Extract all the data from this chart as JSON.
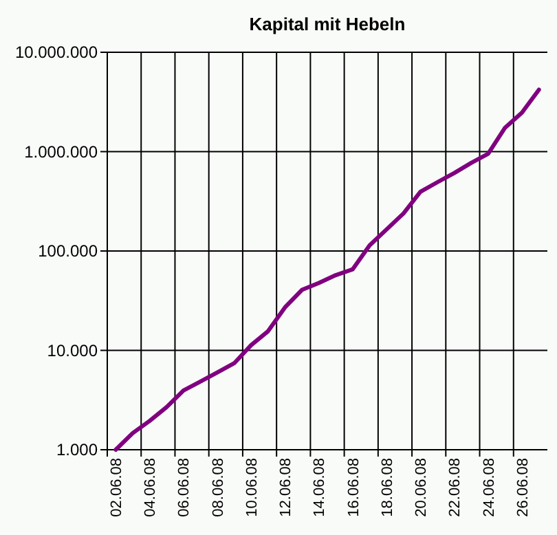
{
  "chart_data": {
    "type": "line",
    "title": "Kapital mit Hebeln",
    "categories": [
      "02.06.08",
      null,
      "04.06.08",
      null,
      "06.06.08",
      null,
      "08.06.08",
      null,
      "10.06.08",
      null,
      "12.06.08",
      null,
      "14.06.08",
      null,
      "16.06.08",
      null,
      "18.06.08",
      null,
      "20.06.08",
      null,
      "22.06.08",
      null,
      "24.06.08",
      null,
      "26.06.08",
      null
    ],
    "series": [
      {
        "color": "#800080",
        "values": [
          1000,
          1470,
          1950,
          2680,
          3940,
          4860,
          6000,
          7420,
          11300,
          15600,
          27100,
          40600,
          47700,
          57200,
          65500,
          114000,
          165000,
          239000,
          394000,
          492000,
          609000,
          771000,
          951000,
          1740000,
          2470000,
          4200000
        ]
      }
    ],
    "log": "y",
    "ylim": [
      1000,
      10000000
    ],
    "yticks": [
      {
        "value": 1000,
        "label": "1.000"
      },
      {
        "value": 10000,
        "label": "10.000"
      },
      {
        "value": 100000,
        "label": "100.000"
      },
      {
        "value": 1000000,
        "label": "1.000.000"
      },
      {
        "value": 10000000,
        "label": "10.000.000"
      }
    ],
    "grid": true,
    "marker": "none",
    "line_style": "solid"
  }
}
